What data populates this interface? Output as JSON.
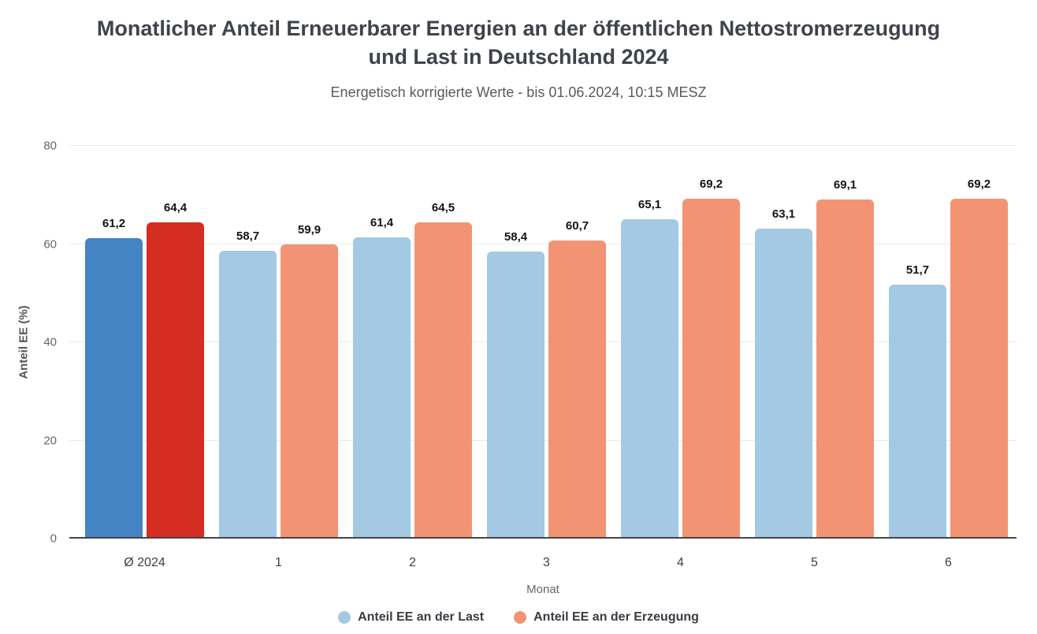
{
  "header": {
    "title_line1": "Monatlicher Anteil Erneuerbarer Energien an der öffentlichen Nettostromerzeugung",
    "title_line2": "und Last in Deutschland 2024",
    "subtitle": "Energetisch korrigierte Werte - bis 01.06.2024, 10:15 MESZ"
  },
  "chart_data": {
    "type": "bar",
    "title": "Monatlicher Anteil Erneuerbarer Energien an der öffentlichen Nettostromerzeugung und Last in Deutschland 2024",
    "subtitle": "Energetisch korrigierte Werte - bis 01.06.2024, 10:15 MESZ",
    "xlabel": "Monat",
    "ylabel": "Anteil EE (%)",
    "ylim": [
      0,
      80
    ],
    "yticks": [
      0,
      20,
      40,
      60,
      80
    ],
    "grid": true,
    "legend_position": "bottom",
    "categories": [
      "Ø 2024",
      "1",
      "2",
      "3",
      "4",
      "5",
      "6"
    ],
    "series": [
      {
        "name": "Anteil EE an der Last",
        "values": [
          61.2,
          58.7,
          61.4,
          58.4,
          65.1,
          63.1,
          51.7
        ],
        "labels": [
          "61,2",
          "58,7",
          "61,4",
          "58,4",
          "65,1",
          "63,1",
          "51,7"
        ],
        "color": "#a3c9e3",
        "first_bar_color": "#4484c4"
      },
      {
        "name": "Anteil EE an der Erzeugung",
        "values": [
          64.4,
          59.9,
          64.5,
          60.7,
          69.2,
          69.1,
          69.2
        ],
        "labels": [
          "64,4",
          "59,9",
          "64,5",
          "60,7",
          "69,2",
          "69,1",
          "69,2"
        ],
        "color": "#f29474",
        "first_bar_color": "#d42d22"
      }
    ]
  },
  "colors": {
    "grid_line": "#e9e9e9",
    "axis_line": "#454545",
    "tick_text": "#666666",
    "category_text": "#3d3d3d",
    "value_label_text": "#141414",
    "title_text": "#3f434a",
    "subtitle_text": "#5a5a5a",
    "legend_text": "#373c42"
  }
}
